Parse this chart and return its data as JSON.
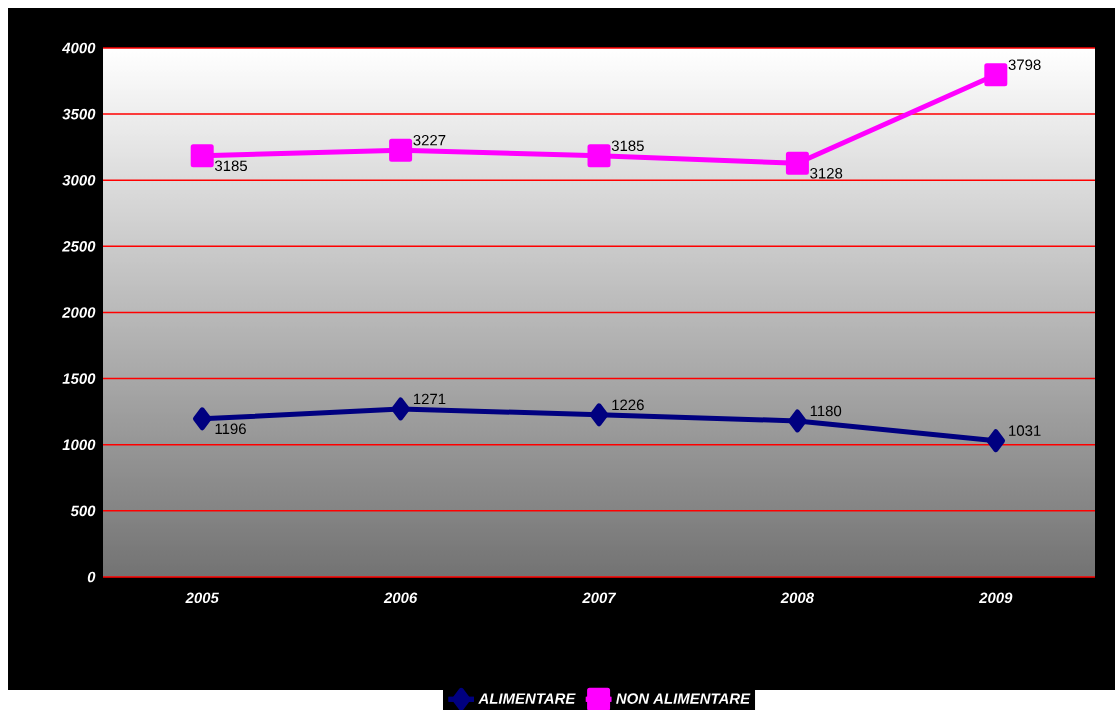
{
  "chart_data": {
    "type": "line",
    "categories": [
      "2005",
      "2006",
      "2007",
      "2008",
      "2009"
    ],
    "series": [
      {
        "name": "ALIMENTARE",
        "color": "#000080",
        "marker": "diamond",
        "values": [
          1196,
          1271,
          1226,
          1180,
          1031
        ]
      },
      {
        "name": "NON ALIMENTARE",
        "color": "#ff00ff",
        "marker": "square",
        "values": [
          3185,
          3227,
          3185,
          3128,
          3798
        ]
      }
    ],
    "ylim": [
      0,
      4000
    ],
    "yticks": [
      0,
      500,
      1000,
      1500,
      2000,
      2500,
      3000,
      3500,
      4000
    ],
    "grid": "y",
    "legend": "bottom",
    "data_labels": true,
    "line_style": "solid"
  }
}
